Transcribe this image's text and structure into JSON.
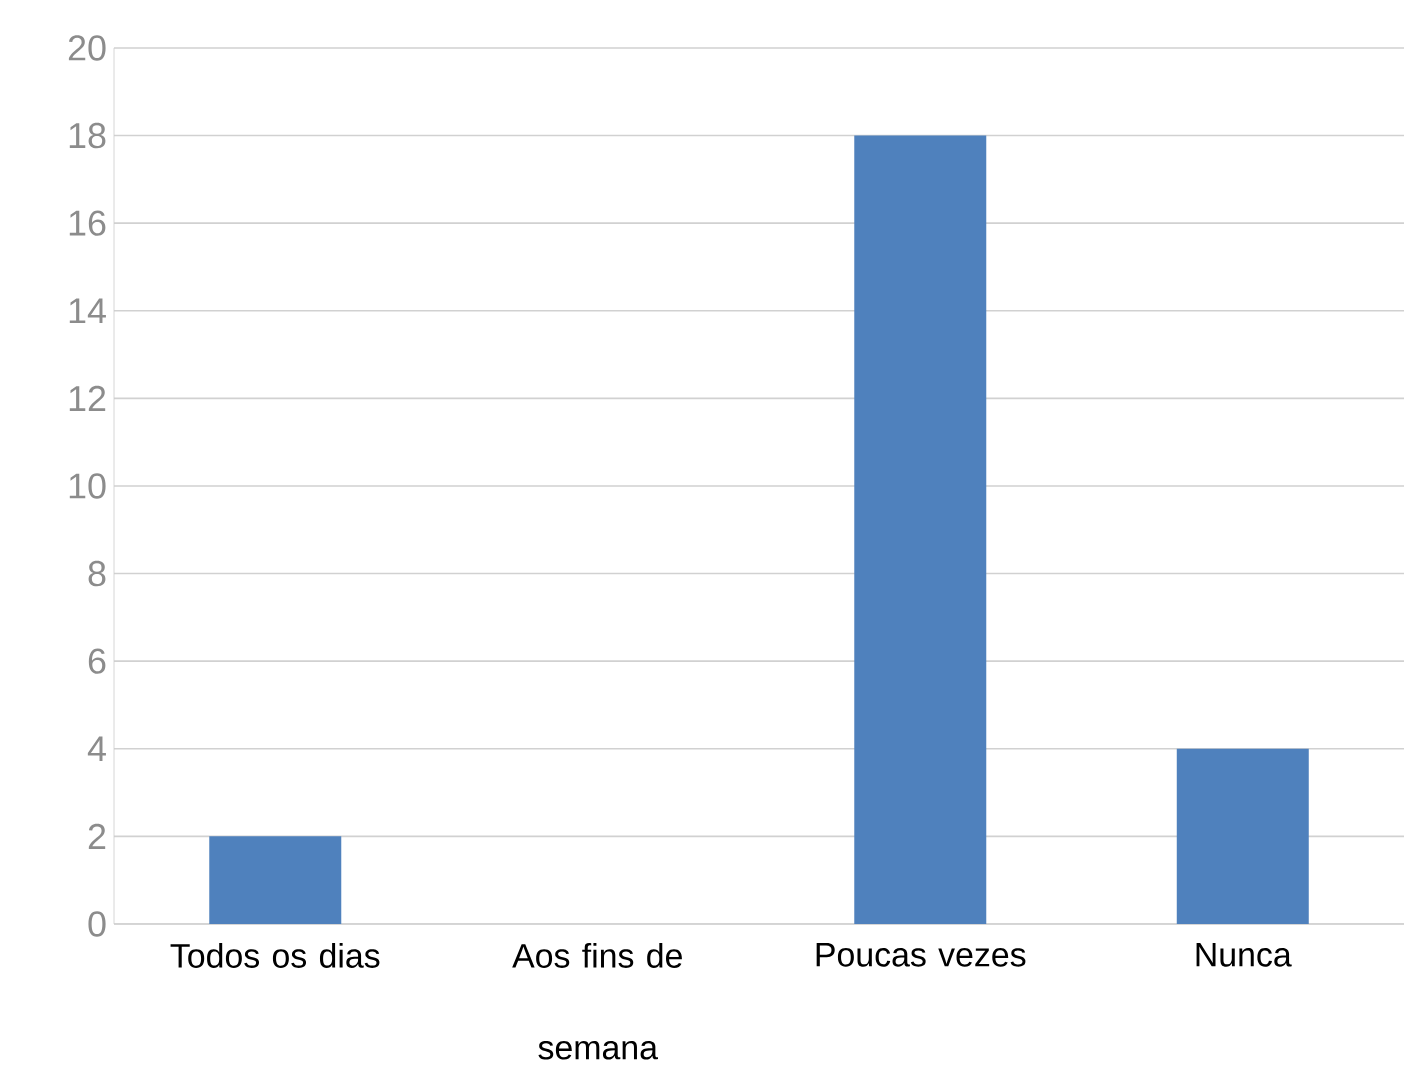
{
  "chart_data": {
    "type": "bar",
    "categories": [
      "Todos os dias",
      "Aos fins de semana",
      "Poucas vezes",
      "Nunca"
    ],
    "values": [
      2,
      0,
      18,
      4
    ],
    "color": "#4f81bd",
    "ylim": [
      0,
      20
    ],
    "yticks": [
      0,
      2,
      4,
      6,
      8,
      10,
      12,
      14,
      16,
      18,
      20
    ],
    "grid": "y"
  }
}
